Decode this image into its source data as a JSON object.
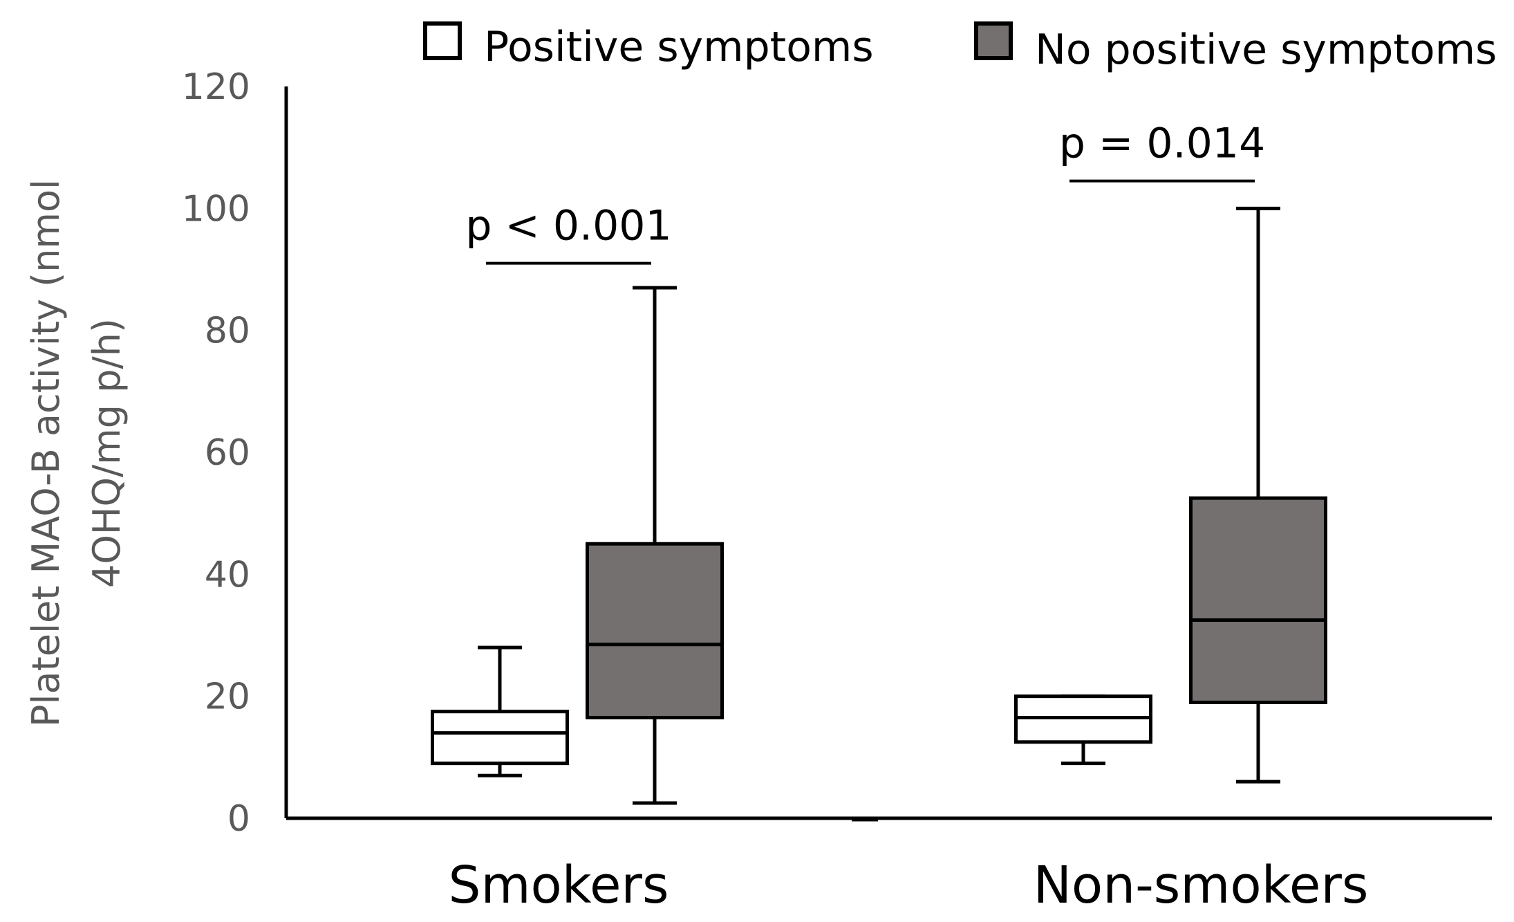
{
  "chart_data": {
    "type": "box",
    "title": "",
    "ylabel_lines": [
      "Platelet MAO-B activity (nmol",
      "4OHQ/mg p/h)"
    ],
    "xlabel": "",
    "ylim": [
      0,
      120
    ],
    "yticks": [
      0,
      20,
      40,
      60,
      80,
      100,
      120
    ],
    "categories": [
      "Smokers",
      "Non-smokers"
    ],
    "legend_position": "top",
    "series": [
      {
        "name": "Positive symptoms",
        "color": "#ffffff",
        "boxes": [
          {
            "min": 7,
            "q1": 9,
            "median": 14,
            "q3": 17.5,
            "max": 28
          },
          {
            "min": 9,
            "q1": 12.5,
            "median": 16.5,
            "q3": 20,
            "max": 20
          }
        ]
      },
      {
        "name": "No positive symptoms",
        "color": "#757070",
        "boxes": [
          {
            "min": 2.5,
            "q1": 16.5,
            "median": 28.5,
            "q3": 45,
            "max": 87
          },
          {
            "min": 6,
            "q1": 19,
            "median": 32.5,
            "q3": 52.5,
            "max": 100
          }
        ]
      }
    ],
    "annotations": [
      {
        "category": "Smokers",
        "text": "p < 0.001",
        "y": 91
      },
      {
        "category": "Non-smokers",
        "text": "p = 0.014",
        "y": 104.5
      }
    ]
  }
}
